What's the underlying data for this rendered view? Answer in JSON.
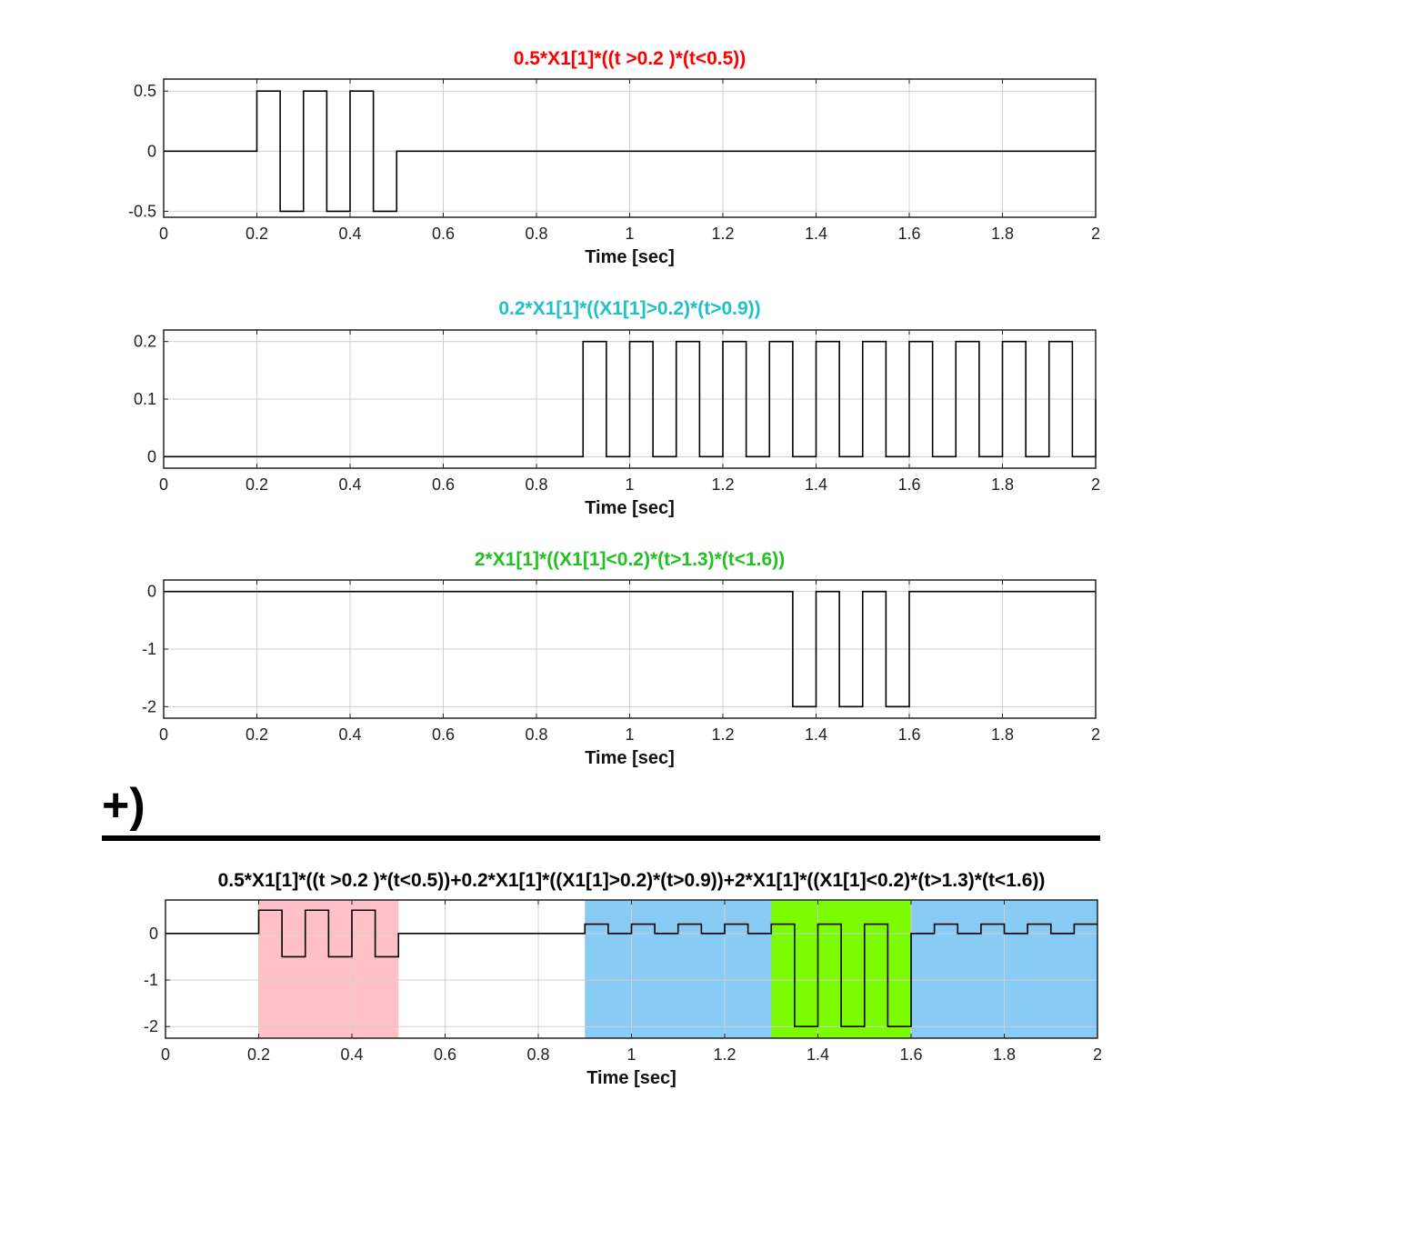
{
  "operator": {
    "label": "+)"
  },
  "chart_data": [
    {
      "type": "line",
      "title": "0.5*X1[1]*((t >0.2 )*(t<0.5))",
      "title_color": "#ff0000",
      "xlabel": "Time [sec]",
      "xlim": [
        0,
        2
      ],
      "ylim": [
        -0.55,
        0.6
      ],
      "x_ticks": [
        "0",
        "0.2",
        "0.4",
        "0.6",
        "0.8",
        "1",
        "1.2",
        "1.4",
        "1.6",
        "1.8",
        "2"
      ],
      "y_ticks": [
        {
          "value": 0.5,
          "label": "0.5"
        },
        {
          "value": 0,
          "label": "0"
        },
        {
          "value": -0.5,
          "label": "-0.5"
        }
      ],
      "x": [
        0,
        0.2,
        0.2,
        0.25,
        0.25,
        0.3,
        0.3,
        0.35,
        0.35,
        0.4,
        0.4,
        0.45,
        0.45,
        0.5,
        0.5,
        2
      ],
      "values": [
        0,
        0,
        0.5,
        0.5,
        -0.5,
        -0.5,
        0.5,
        0.5,
        -0.5,
        -0.5,
        0.5,
        0.5,
        -0.5,
        -0.5,
        0,
        0
      ]
    },
    {
      "type": "line",
      "title": "0.2*X1[1]*((X1[1]>0.2)*(t>0.9))",
      "title_color": "#20c0c8",
      "xlabel": "Time [sec]",
      "xlim": [
        0,
        2
      ],
      "ylim": [
        -0.02,
        0.22
      ],
      "x_ticks": [
        "0",
        "0.2",
        "0.4",
        "0.6",
        "0.8",
        "1",
        "1.2",
        "1.4",
        "1.6",
        "1.8",
        "2"
      ],
      "y_ticks": [
        {
          "value": 0.2,
          "label": "0.2"
        },
        {
          "value": 0.1,
          "label": "0.1"
        },
        {
          "value": 0,
          "label": "0"
        }
      ],
      "x": [
        0,
        0.9,
        0.9,
        0.95,
        0.95,
        1.0,
        1.0,
        1.05,
        1.05,
        1.1,
        1.1,
        1.15,
        1.15,
        1.2,
        1.2,
        1.25,
        1.25,
        1.3,
        1.3,
        1.35,
        1.35,
        1.4,
        1.4,
        1.45,
        1.45,
        1.5,
        1.5,
        1.55,
        1.55,
        1.6,
        1.6,
        1.65,
        1.65,
        1.7,
        1.7,
        1.75,
        1.75,
        1.8,
        1.8,
        1.85,
        1.85,
        1.9,
        1.9,
        1.95,
        1.95,
        2.0,
        2.0
      ],
      "values": [
        0,
        0,
        0.2,
        0.2,
        0,
        0,
        0.2,
        0.2,
        0,
        0,
        0.2,
        0.2,
        0,
        0,
        0.2,
        0.2,
        0,
        0,
        0.2,
        0.2,
        0,
        0,
        0.2,
        0.2,
        0,
        0,
        0.2,
        0.2,
        0,
        0,
        0.2,
        0.2,
        0,
        0,
        0.2,
        0.2,
        0,
        0,
        0.2,
        0.2,
        0,
        0,
        0.2,
        0.2,
        0,
        0,
        0.1
      ]
    },
    {
      "type": "line",
      "title": "2*X1[1]*((X1[1]<0.2)*(t>1.3)*(t<1.6))",
      "title_color": "#22c022",
      "xlabel": "Time [sec]",
      "xlim": [
        0,
        2
      ],
      "ylim": [
        -2.2,
        0.2
      ],
      "x_ticks": [
        "0",
        "0.2",
        "0.4",
        "0.6",
        "0.8",
        "1",
        "1.2",
        "1.4",
        "1.6",
        "1.8",
        "2"
      ],
      "y_ticks": [
        {
          "value": 0,
          "label": "0"
        },
        {
          "value": -1,
          "label": "-1"
        },
        {
          "value": -2,
          "label": "-2"
        }
      ],
      "x": [
        0,
        1.35,
        1.35,
        1.4,
        1.4,
        1.45,
        1.45,
        1.5,
        1.5,
        1.55,
        1.55,
        1.6,
        1.6,
        2
      ],
      "values": [
        0,
        0,
        -2,
        -2,
        0,
        0,
        -2,
        -2,
        0,
        0,
        -2,
        -2,
        0,
        0
      ]
    },
    {
      "type": "line",
      "title": "0.5*X1[1]*((t >0.2 )*(t<0.5))+0.2*X1[1]*((X1[1]>0.2)*(t>0.9))+2*X1[1]*((X1[1]<0.2)*(t>1.3)*(t<1.6))",
      "title_color": "#000000",
      "xlabel": "Time [sec]",
      "xlim": [
        0,
        2
      ],
      "ylim": [
        -2.25,
        0.72
      ],
      "x_ticks": [
        "0",
        "0.2",
        "0.4",
        "0.6",
        "0.8",
        "1",
        "1.2",
        "1.4",
        "1.6",
        "1.8",
        "2"
      ],
      "y_ticks": [
        {
          "value": 0,
          "label": "0"
        },
        {
          "value": -1,
          "label": "-1"
        },
        {
          "value": -2,
          "label": "-2"
        }
      ],
      "shaded_regions": [
        {
          "from": 0.2,
          "to": 0.5,
          "color": "#ffc0c8"
        },
        {
          "from": 0.9,
          "to": 2.0,
          "color": "#88ccf5"
        },
        {
          "from": 1.3,
          "to": 1.6,
          "color": "#7cfc00"
        }
      ],
      "x": [
        0,
        0.2,
        0.2,
        0.25,
        0.25,
        0.3,
        0.3,
        0.35,
        0.35,
        0.4,
        0.4,
        0.45,
        0.45,
        0.5,
        0.5,
        0.9,
        0.9,
        0.95,
        0.95,
        1.0,
        1.0,
        1.05,
        1.05,
        1.1,
        1.1,
        1.15,
        1.15,
        1.2,
        1.2,
        1.25,
        1.25,
        1.3,
        1.3,
        1.35,
        1.35,
        1.4,
        1.4,
        1.45,
        1.45,
        1.5,
        1.5,
        1.55,
        1.55,
        1.6,
        1.6,
        1.65,
        1.65,
        1.7,
        1.7,
        1.75,
        1.75,
        1.8,
        1.8,
        1.85,
        1.85,
        1.9,
        1.9,
        1.95,
        1.95,
        2.0
      ],
      "values": [
        0,
        0,
        0.5,
        0.5,
        -0.5,
        -0.5,
        0.5,
        0.5,
        -0.5,
        -0.5,
        0.5,
        0.5,
        -0.5,
        -0.5,
        0,
        0,
        0.2,
        0.2,
        0,
        0,
        0.2,
        0.2,
        0,
        0,
        0.2,
        0.2,
        0,
        0,
        0.2,
        0.2,
        0,
        0,
        0.2,
        0.2,
        -2,
        -2,
        0.2,
        0.2,
        -2,
        -2,
        0.2,
        0.2,
        -2,
        -2,
        0,
        0,
        0.2,
        0.2,
        0,
        0,
        0.2,
        0.2,
        0,
        0,
        0.2,
        0.2,
        0,
        0,
        0.2,
        0.2
      ]
    }
  ]
}
